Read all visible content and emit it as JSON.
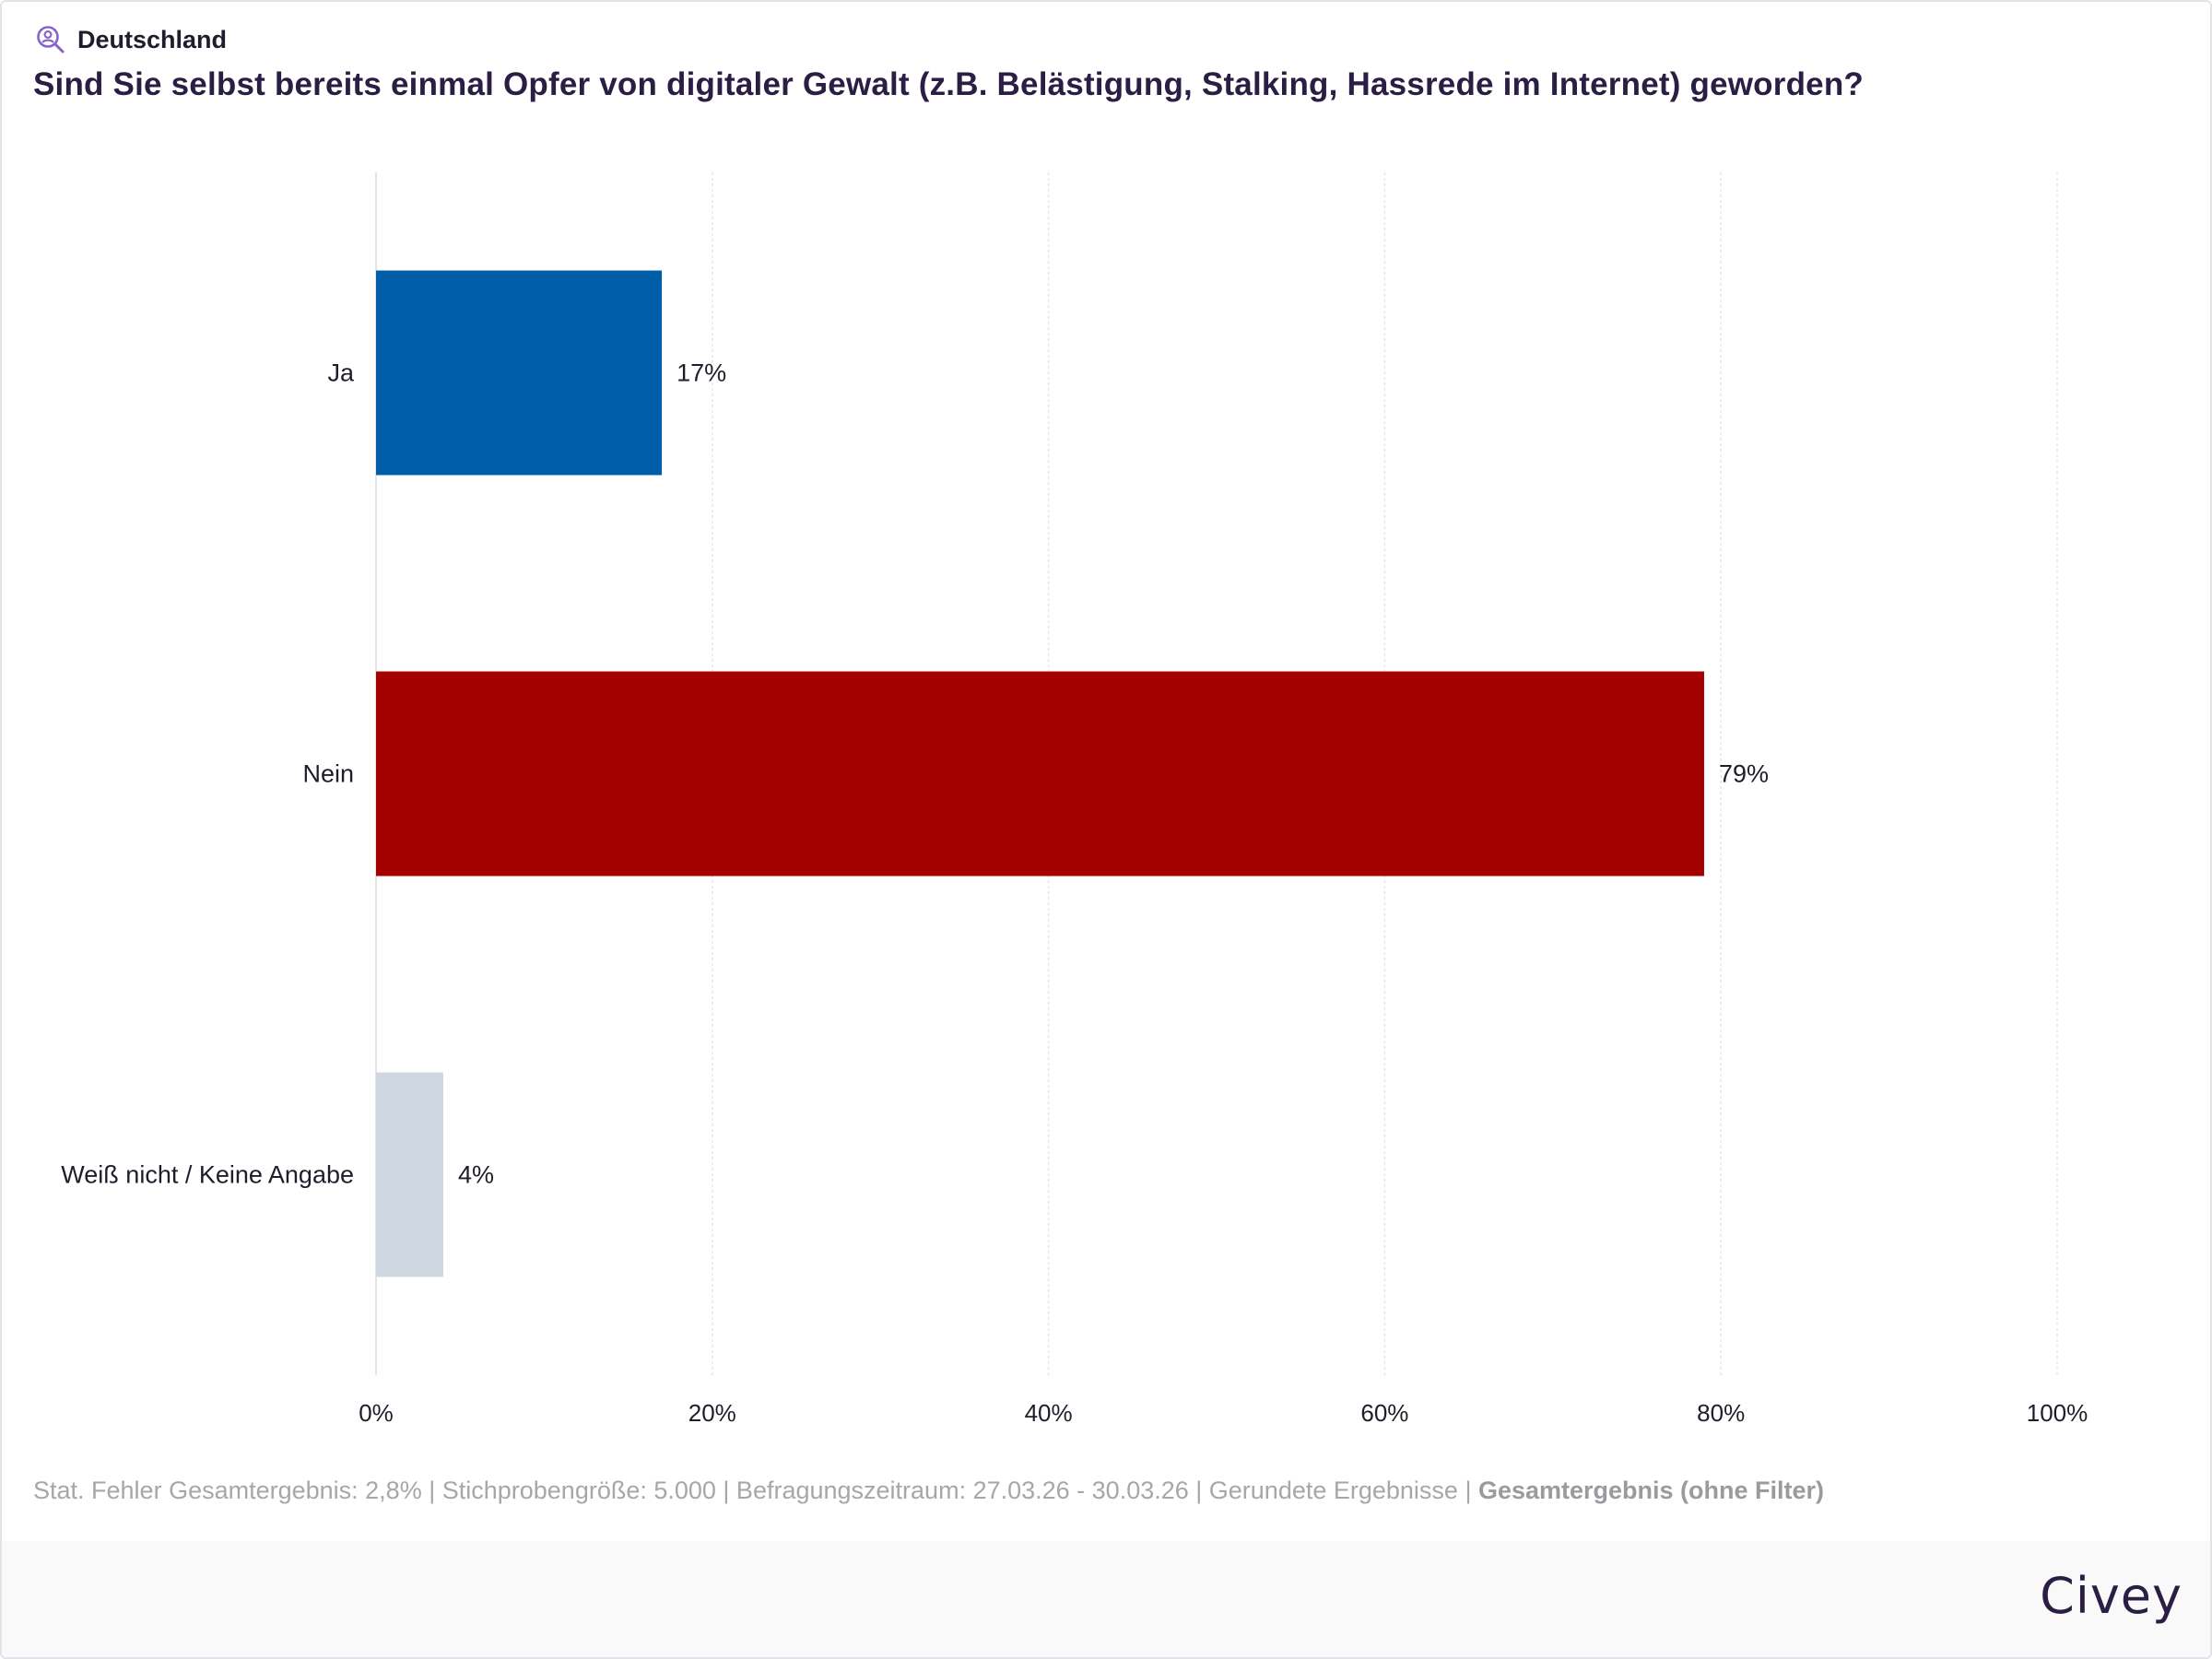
{
  "header": {
    "region": "Deutschland",
    "region_icon": "person-search-icon",
    "question": "Sind Sie selbst bereits einmal Opfer von digitaler Gewalt (z.B. Belästigung, Stalking, Hassrede im Internet) geworden?"
  },
  "footer": {
    "note_plain": "Stat. Fehler Gesamtergebnis: 2,8% | Stichprobengröße: 5.000 | Befragungszeitraum: 27.03.26 - 30.03.26 | Gerundete Ergebnisse | ",
    "note_bold": "Gesamtergebnis (ohne Filter)",
    "brand": "Civey"
  },
  "colors": {
    "accent": "#2b1e44",
    "icon": "#8a63c8"
  },
  "chart_data": {
    "type": "bar",
    "orientation": "horizontal",
    "categories": [
      "Ja",
      "Nein",
      "Weiß nicht / Keine Angabe"
    ],
    "values": [
      17,
      79,
      4
    ],
    "value_labels": [
      "17%",
      "79%",
      "4%"
    ],
    "colors": [
      "#005ea8",
      "#a50000",
      "#cfd8e0"
    ],
    "xlim": [
      0,
      100
    ],
    "xticks": [
      0,
      20,
      40,
      60,
      80,
      100
    ],
    "xtick_labels": [
      "0%",
      "20%",
      "40%",
      "60%",
      "80%",
      "100%"
    ],
    "grid": true
  }
}
